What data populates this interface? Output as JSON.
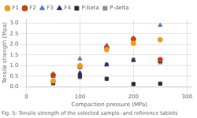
{
  "chart_data": {
    "type": "scatter",
    "caption": "Fig. 5: Tensile strength of the selected sample- and reference tablets",
    "x_label": "Compaction pressure (MPa)",
    "y_label": "Tensile strength (Mpa)",
    "x": [
      50,
      100,
      150,
      200,
      250
    ],
    "series": [
      {
        "name": "F1",
        "color": "#E8A020",
        "marker": "circle",
        "values": [
          0.28,
          1.0,
          1.75,
          2.05,
          2.22
        ]
      },
      {
        "name": "F2",
        "color": "#D04010",
        "marker": "circle",
        "values": [
          0.55,
          0.95,
          1.85,
          2.25,
          1.28
        ]
      },
      {
        "name": "F3",
        "color": "#5080C8",
        "marker": "triangle",
        "values": [
          0.62,
          1.32,
          1.95,
          2.3,
          2.9
        ]
      },
      {
        "name": "F4",
        "color": "#203870",
        "marker": "triangle",
        "values": [
          0.5,
          0.65,
          1.05,
          1.25,
          1.2
        ]
      },
      {
        "name": "P-beta",
        "color": "#303030",
        "marker": "square",
        "values": [
          0.2,
          0.5,
          0.38,
          0.13,
          0.15
        ]
      },
      {
        "name": "P-delta",
        "color": "#909090",
        "marker": "square",
        "values": [
          0.15,
          0.45,
          1.05,
          1.28,
          1.15
        ]
      }
    ],
    "xlim": [
      0,
      310
    ],
    "ylim": [
      0,
      3.2
    ],
    "xticks": [
      0,
      100,
      200,
      300
    ],
    "yticks": [
      {
        "value": 0,
        "label": "0.0"
      },
      0.5,
      {
        "value": 1,
        "label": "1.0"
      },
      1.5,
      {
        "value": 2,
        "label": "2.0"
      },
      2.5,
      {
        "value": 3,
        "label": "3.0"
      }
    ],
    "grid": true,
    "legend": "top"
  }
}
